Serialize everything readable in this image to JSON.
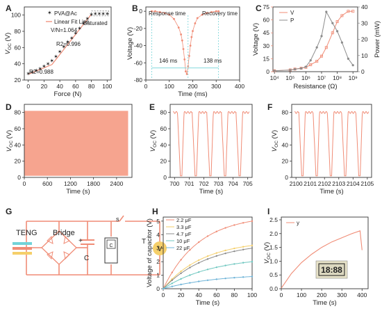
{
  "colors": {
    "salmon": "#f08c76",
    "salmonFill": "#f6a48f",
    "gray": "#8c8c8c",
    "axis": "#333333",
    "yellow": "#f5cf6a",
    "blue": "#6fb4d8",
    "cyan": "#72d3d8",
    "green": "#7dc99f",
    "teal": "#6fc7c0",
    "beige": "#e8e3c9",
    "lcd": "#1b1b1b"
  },
  "chart_data": [
    {
      "panel": "A",
      "type": "line",
      "xlabel": "Force (N)",
      "ylabel": "VOC (V)",
      "xlim": [
        -5,
        105
      ],
      "ylim": [
        20,
        110
      ],
      "xticks": [
        0,
        20,
        40,
        60,
        80,
        100
      ],
      "yticks": [
        20,
        40,
        60,
        80,
        100
      ],
      "legend": [
        "PVA@Ac",
        "Linear Fit Line"
      ],
      "annotations": [
        "V/N=1.064",
        "R2=0.996",
        "R2=0.988",
        "Saturated"
      ],
      "series": [
        {
          "name": "PVA@Ac",
          "x": [
            0,
            5,
            10,
            15,
            20,
            25,
            30,
            35,
            40,
            45,
            50,
            55,
            60,
            65,
            70,
            75,
            80,
            85,
            90,
            95,
            100
          ],
          "y": [
            28,
            30,
            32,
            34,
            37,
            40,
            44,
            49,
            55,
            61,
            67,
            72,
            78,
            84,
            90,
            96,
            101,
            102,
            102,
            102,
            102
          ]
        },
        {
          "name": "Linear Fit Line",
          "x": [
            0,
            30,
            80
          ],
          "y": [
            27,
            39,
            101
          ]
        }
      ]
    },
    {
      "panel": "B",
      "type": "line",
      "xlabel": "Time (ms)",
      "ylabel": "Voltage (V)",
      "xlim": [
        0,
        400
      ],
      "ylim": [
        -80,
        5
      ],
      "xticks": [
        0,
        100,
        200,
        300,
        400
      ],
      "yticks": [
        -80,
        -60,
        -40,
        -20,
        0
      ],
      "annotations": [
        "Response time",
        "Recovery time",
        "146 ms",
        "138 ms"
      ],
      "series": [
        {
          "x": [
            25,
            40,
            60,
            80,
            100,
            120,
            140,
            150,
            155,
            160,
            165,
            170,
            175,
            180,
            185,
            190,
            195,
            200,
            210,
            220,
            240,
            260,
            280,
            300,
            310
          ],
          "y": [
            0,
            0,
            -1,
            -2,
            -4,
            -9,
            -19,
            -27,
            -34,
            -44,
            -56,
            -70,
            -73,
            -64,
            -52,
            -40,
            -30,
            -23,
            -14,
            -8,
            -4,
            -2,
            -1,
            0,
            0
          ]
        }
      ]
    },
    {
      "panel": "C",
      "type": "line",
      "xlabel": "Resistance (Ω)",
      "ylabel": "Voltage (V)",
      "y2label": "Power (mW)",
      "xscale": "log",
      "xlim": [
        8000,
        2000000000
      ],
      "ylim": [
        0,
        75
      ],
      "y2lim": [
        0,
        40
      ],
      "xticks": [
        "10⁴",
        "10⁵",
        "10⁶",
        "10⁷",
        "10⁸",
        "10⁹"
      ],
      "yticks": [
        0,
        15,
        30,
        45,
        60,
        75
      ],
      "y2ticks": [
        0,
        10,
        20,
        30,
        40
      ],
      "legend": [
        "V",
        "P"
      ],
      "series": [
        {
          "name": "V",
          "x": [
            10000,
            100000,
            200000,
            500000,
            1000000,
            2000000,
            5000000,
            10000000,
            20000000,
            50000000,
            100000000,
            200000000,
            500000000,
            1000000000
          ],
          "y": [
            1,
            2,
            3,
            4,
            5,
            8,
            12,
            18,
            28,
            45,
            58,
            65,
            70,
            70
          ]
        },
        {
          "name": "P",
          "axis": "right",
          "x": [
            10000,
            100000,
            200000,
            500000,
            1000000,
            2000000,
            5000000,
            10000000,
            20000000,
            50000000,
            100000000,
            200000000,
            500000000,
            1000000000
          ],
          "y": [
            0.5,
            1,
            1.5,
            2,
            3,
            7,
            15,
            22,
            37,
            30,
            25,
            18,
            8,
            4
          ]
        }
      ]
    },
    {
      "panel": "D",
      "type": "area",
      "xlabel": "Time (s)",
      "ylabel": "VOC (V)",
      "xlim": [
        0,
        2800
      ],
      "ylim": [
        0,
        90
      ],
      "xticks": [
        0,
        600,
        1200,
        1800,
        2400
      ],
      "yticks": [
        0,
        20,
        40,
        60,
        80
      ],
      "series": [
        {
          "x": [
            0,
            2700
          ],
          "y_min": [
            2,
            2
          ],
          "y_max": [
            82,
            82
          ]
        }
      ]
    },
    {
      "panel": "E",
      "type": "line",
      "xlabel": "Time (s)",
      "ylabel": "VOC (V)",
      "xlim": [
        699.7,
        705.3
      ],
      "ylim": [
        0,
        90
      ],
      "xticks": [
        700,
        701,
        702,
        703,
        704,
        705
      ],
      "yticks": [
        0,
        20,
        40,
        60,
        80
      ],
      "series": [
        {
          "period": 1,
          "peaks": 5,
          "high": 80,
          "low": 2,
          "x_start": 699.9,
          "x_end": 705.1
        }
      ]
    },
    {
      "panel": "F",
      "type": "line",
      "xlabel": "Time (s)",
      "ylabel": "VOC (V)",
      "xlim": [
        2099.7,
        2105.3
      ],
      "ylim": [
        0,
        90
      ],
      "xticks": [
        2100,
        2101,
        2102,
        2103,
        2104,
        2105
      ],
      "yticks": [
        0,
        20,
        40,
        60,
        80
      ],
      "series": [
        {
          "period": 1,
          "peaks": 5,
          "high": 80,
          "low": 2,
          "x_start": 2099.9,
          "x_end": 2105.1
        }
      ]
    },
    {
      "panel": "H",
      "type": "line",
      "xlabel": "Time (s)",
      "ylabel": "Voltage of capacitor (V)",
      "xlim": [
        0,
        100
      ],
      "ylim": [
        0,
        5.3
      ],
      "xticks": [
        0,
        20,
        40,
        60,
        80,
        100
      ],
      "yticks": [
        0,
        1,
        2,
        3,
        4,
        5
      ],
      "legend_position": "top-left",
      "series": [
        {
          "name": "2.2 μF",
          "final": 5.0
        },
        {
          "name": "3.3 μF",
          "final": 3.2
        },
        {
          "name": "4.7 μF",
          "final": 3.0
        },
        {
          "name": "10 μF",
          "final": 2.0
        },
        {
          "name": "22 μF",
          "final": 0.9
        }
      ]
    },
    {
      "panel": "I",
      "type": "line",
      "xlabel": "Time (s)",
      "ylabel": "VOC (V)",
      "xlim": [
        0,
        430
      ],
      "ylim": [
        0,
        2.6
      ],
      "xticks": [
        0,
        100,
        200,
        300,
        400
      ],
      "yticks": [
        0.0,
        0.5,
        1.0,
        1.5,
        2.0,
        2.5
      ],
      "legend": [
        "y"
      ],
      "series": [
        {
          "name": "y",
          "x": [
            0,
            50,
            100,
            150,
            200,
            250,
            300,
            350,
            390,
            393,
            400
          ],
          "y": [
            0.02,
            0.55,
            0.95,
            1.25,
            1.5,
            1.7,
            1.85,
            2.0,
            2.1,
            1.9,
            1.4
          ]
        }
      ]
    }
  ],
  "panels": {
    "labels": [
      "A",
      "B",
      "C",
      "D",
      "E",
      "F",
      "G",
      "H",
      "I"
    ]
  },
  "circuit": {
    "teng": "TENG",
    "bridge": "Bridge",
    "switch": "S",
    "plus": "+",
    "cap": "C",
    "load_c": "C",
    "volt": "V",
    "t": "T"
  },
  "lcd_text": "18:88"
}
